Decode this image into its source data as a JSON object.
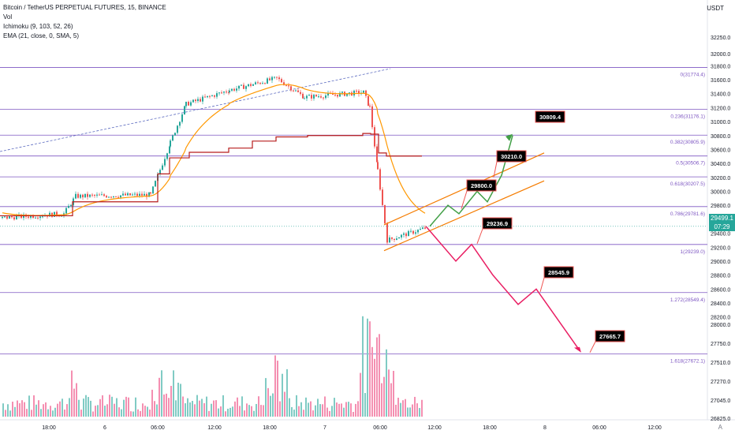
{
  "header": {
    "symbol": "Bitcoin / TetherUS PERPETUAL FUTURES, 15, BINANCE",
    "indicators": [
      "Vol",
      "Ichimoku (9, 103, 52, 26)",
      "EMA (21, close, 0, SMA, 5)"
    ]
  },
  "currency": "USDT",
  "price_badge": {
    "price": "29499.1",
    "time": "07:29"
  },
  "chart_data": {
    "type": "candlestick",
    "price_axis": {
      "ticks": [
        32250,
        32000,
        31800,
        31600,
        31400,
        31200,
        31000,
        30800,
        30600,
        30400,
        30200,
        30000,
        29800,
        29600,
        29400,
        29200,
        29000,
        28800,
        28600,
        28400,
        28200,
        28000,
        27750,
        27510,
        27270,
        27045,
        26825
      ],
      "tick_labels": [
        "32250.0",
        "32000.0",
        "31800.0",
        "31600.0",
        "31400.0",
        "31200.0",
        "31000.0",
        "30800.0",
        "30600.0",
        "30400.0",
        "30200.0",
        "30000.0",
        "29800.0",
        "29600.0",
        "29400.0",
        "29200.0",
        "29000.0",
        "28800.0",
        "28600.0",
        "28400.0",
        "28200.0",
        "28000.0",
        "27750.0",
        "27510.0",
        "27270.0",
        "27045.0",
        "26825.0"
      ]
    },
    "time_axis": {
      "labels": [
        "18:00",
        "6",
        "06:00",
        "12:00",
        "18:00",
        "7",
        "06:00",
        "12:00",
        "18:00",
        "8",
        "06:00",
        "12:00"
      ]
    },
    "fib_levels": [
      {
        "label": "0(31774.4)",
        "price": 31774.4
      },
      {
        "label": "0.236(31176.1)",
        "price": 31176.1
      },
      {
        "label": "0.382(30805.9)",
        "price": 30805.9
      },
      {
        "label": "0.5(30506.7)",
        "price": 30506.7
      },
      {
        "label": "0.618(30207.5)",
        "price": 30207.5
      },
      {
        "label": "0.786(29781.6)",
        "price": 29781.6
      },
      {
        "label": "1(29239.0)",
        "price": 29239.0
      },
      {
        "label": "1.272(28549.4)",
        "price": 28549.4
      },
      {
        "label": "1.618(27672.1)",
        "price": 27672.1
      }
    ],
    "projections": {
      "bullish": [
        "29800.0",
        "30210.0",
        "30809.4"
      ],
      "bearish": [
        "29236.9",
        "28545.9",
        "27665.7"
      ]
    },
    "current_price": 29499.1,
    "colors": {
      "up": "#26a69a",
      "down": "#ef5350",
      "fib": "#7e57c2",
      "ema": "#ff9800",
      "ichimoku_base": "#b71c1c",
      "channel": "#f57c00",
      "bull_path": "#43a047",
      "bear_path": "#e91e63",
      "volume_up": "#80cbc4",
      "volume_down": "#f48fb1"
    }
  }
}
